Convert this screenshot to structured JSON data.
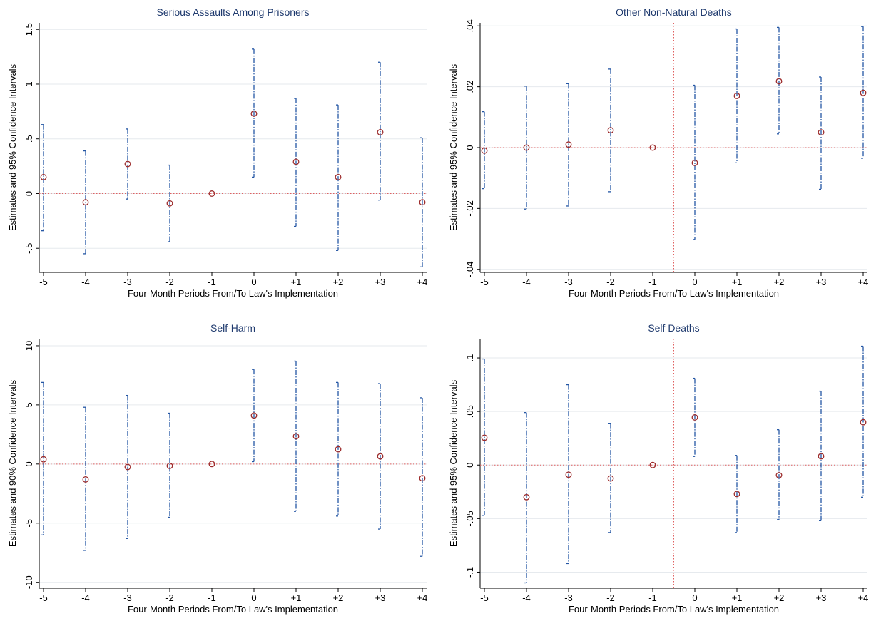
{
  "chart_data": [
    {
      "type": "scatter",
      "title": "Serious Assaults Among Prisoners",
      "xlabel": "Four-Month Periods From/To Law's Implementation",
      "ylabel": "Estimates and 95% Confidence Intervals",
      "categories": [
        "-5",
        "-4",
        "-3",
        "-2",
        "-1",
        "0",
        "+1",
        "+2",
        "+3",
        "+4"
      ],
      "estimates": [
        0.15,
        -0.08,
        0.27,
        -0.09,
        0.0,
        0.73,
        0.29,
        0.15,
        0.56,
        -0.08
      ],
      "ci_lower": [
        -0.34,
        -0.55,
        -0.05,
        -0.44,
        0.0,
        0.15,
        -0.3,
        -0.52,
        -0.06,
        -0.67
      ],
      "ci_upper": [
        0.63,
        0.39,
        0.59,
        0.26,
        0.0,
        1.32,
        0.87,
        0.81,
        1.2,
        0.51
      ],
      "ylim": [
        -0.72,
        1.56
      ],
      "yticks": [
        -0.5,
        0,
        0.5,
        1,
        1.5
      ],
      "ytick_labels": [
        "-.5",
        "0",
        ".5",
        "1",
        "1.5"
      ],
      "zero_line": 0,
      "implementation_line_x": -0.5,
      "grid": true
    },
    {
      "type": "scatter",
      "title": "Other Non-Natural Deaths",
      "xlabel": "Four-Month Periods From/To Law's Implementation",
      "ylabel": "Estimates and 95% Confidence Intervals",
      "categories": [
        "-5",
        "-4",
        "-3",
        "-2",
        "-1",
        "0",
        "+1",
        "+2",
        "+3",
        "+4"
      ],
      "estimates": [
        -0.001,
        0.0,
        0.001,
        0.0057,
        0.0,
        -0.005,
        0.017,
        0.0218,
        0.005,
        0.018
      ],
      "ci_lower": [
        -0.0135,
        -0.0202,
        -0.0192,
        -0.0145,
        0.0,
        -0.0302,
        -0.005,
        0.0045,
        -0.0137,
        -0.0035
      ],
      "ci_upper": [
        0.0118,
        0.0202,
        0.021,
        0.0258,
        0.0,
        0.0205,
        0.039,
        0.0395,
        0.0232,
        0.0398
      ],
      "ylim": [
        -0.041,
        0.041
      ],
      "yticks": [
        -0.04,
        -0.02,
        0,
        0.02,
        0.04
      ],
      "ytick_labels": [
        "-.04",
        "-.02",
        "0",
        ".02",
        ".04"
      ],
      "zero_line": 0,
      "implementation_line_x": -0.5,
      "grid": true
    },
    {
      "type": "scatter",
      "title": "Self-Harm",
      "xlabel": "Four-Month Periods From/To Law's Implementation",
      "ylabel": "Estimates and 90% Confidence Intervals",
      "categories": [
        "-5",
        "-4",
        "-3",
        "-2",
        "-1",
        "0",
        "+1",
        "+2",
        "+3",
        "+4"
      ],
      "estimates": [
        0.4,
        -1.3,
        -0.25,
        -0.15,
        0.0,
        4.1,
        2.35,
        1.25,
        0.65,
        -1.2
      ],
      "ci_lower": [
        -6.0,
        -7.3,
        -6.3,
        -4.5,
        0.0,
        0.2,
        -4.0,
        -4.4,
        -5.5,
        -7.8
      ],
      "ci_upper": [
        6.9,
        4.8,
        5.8,
        4.3,
        0.0,
        8.0,
        8.7,
        6.9,
        6.8,
        5.6
      ],
      "ylim": [
        -10.5,
        10.6
      ],
      "yticks": [
        -10,
        -5,
        0,
        5,
        10
      ],
      "ytick_labels": [
        "-10",
        "-5",
        "0",
        "5",
        "10"
      ],
      "zero_line": 0,
      "implementation_line_x": -0.5,
      "grid": true
    },
    {
      "type": "scatter",
      "title": "Self Deaths",
      "xlabel": "Four-Month Periods From/To Law's Implementation",
      "ylabel": "Estimates and 95% Confidence Intervals",
      "categories": [
        "-5",
        "-4",
        "-3",
        "-2",
        "-1",
        "0",
        "+1",
        "+2",
        "+3",
        "+4"
      ],
      "estimates": [
        0.0255,
        -0.03,
        -0.009,
        -0.0125,
        0.0,
        0.0445,
        -0.027,
        -0.0095,
        0.0082,
        0.04
      ],
      "ci_lower": [
        -0.047,
        -0.11,
        -0.092,
        -0.063,
        0.0,
        0.008,
        -0.063,
        -0.051,
        -0.052,
        -0.03
      ],
      "ci_upper": [
        0.099,
        0.049,
        0.075,
        0.039,
        0.0,
        0.081,
        0.009,
        0.033,
        0.069,
        0.111
      ],
      "ylim": [
        -0.115,
        0.118
      ],
      "yticks": [
        -0.1,
        -0.05,
        0,
        0.05,
        0.1
      ],
      "ytick_labels": [
        "-.1",
        "-.05",
        "0",
        ".05",
        ".1"
      ],
      "zero_line": 0,
      "implementation_line_x": -0.5,
      "grid": true
    }
  ]
}
